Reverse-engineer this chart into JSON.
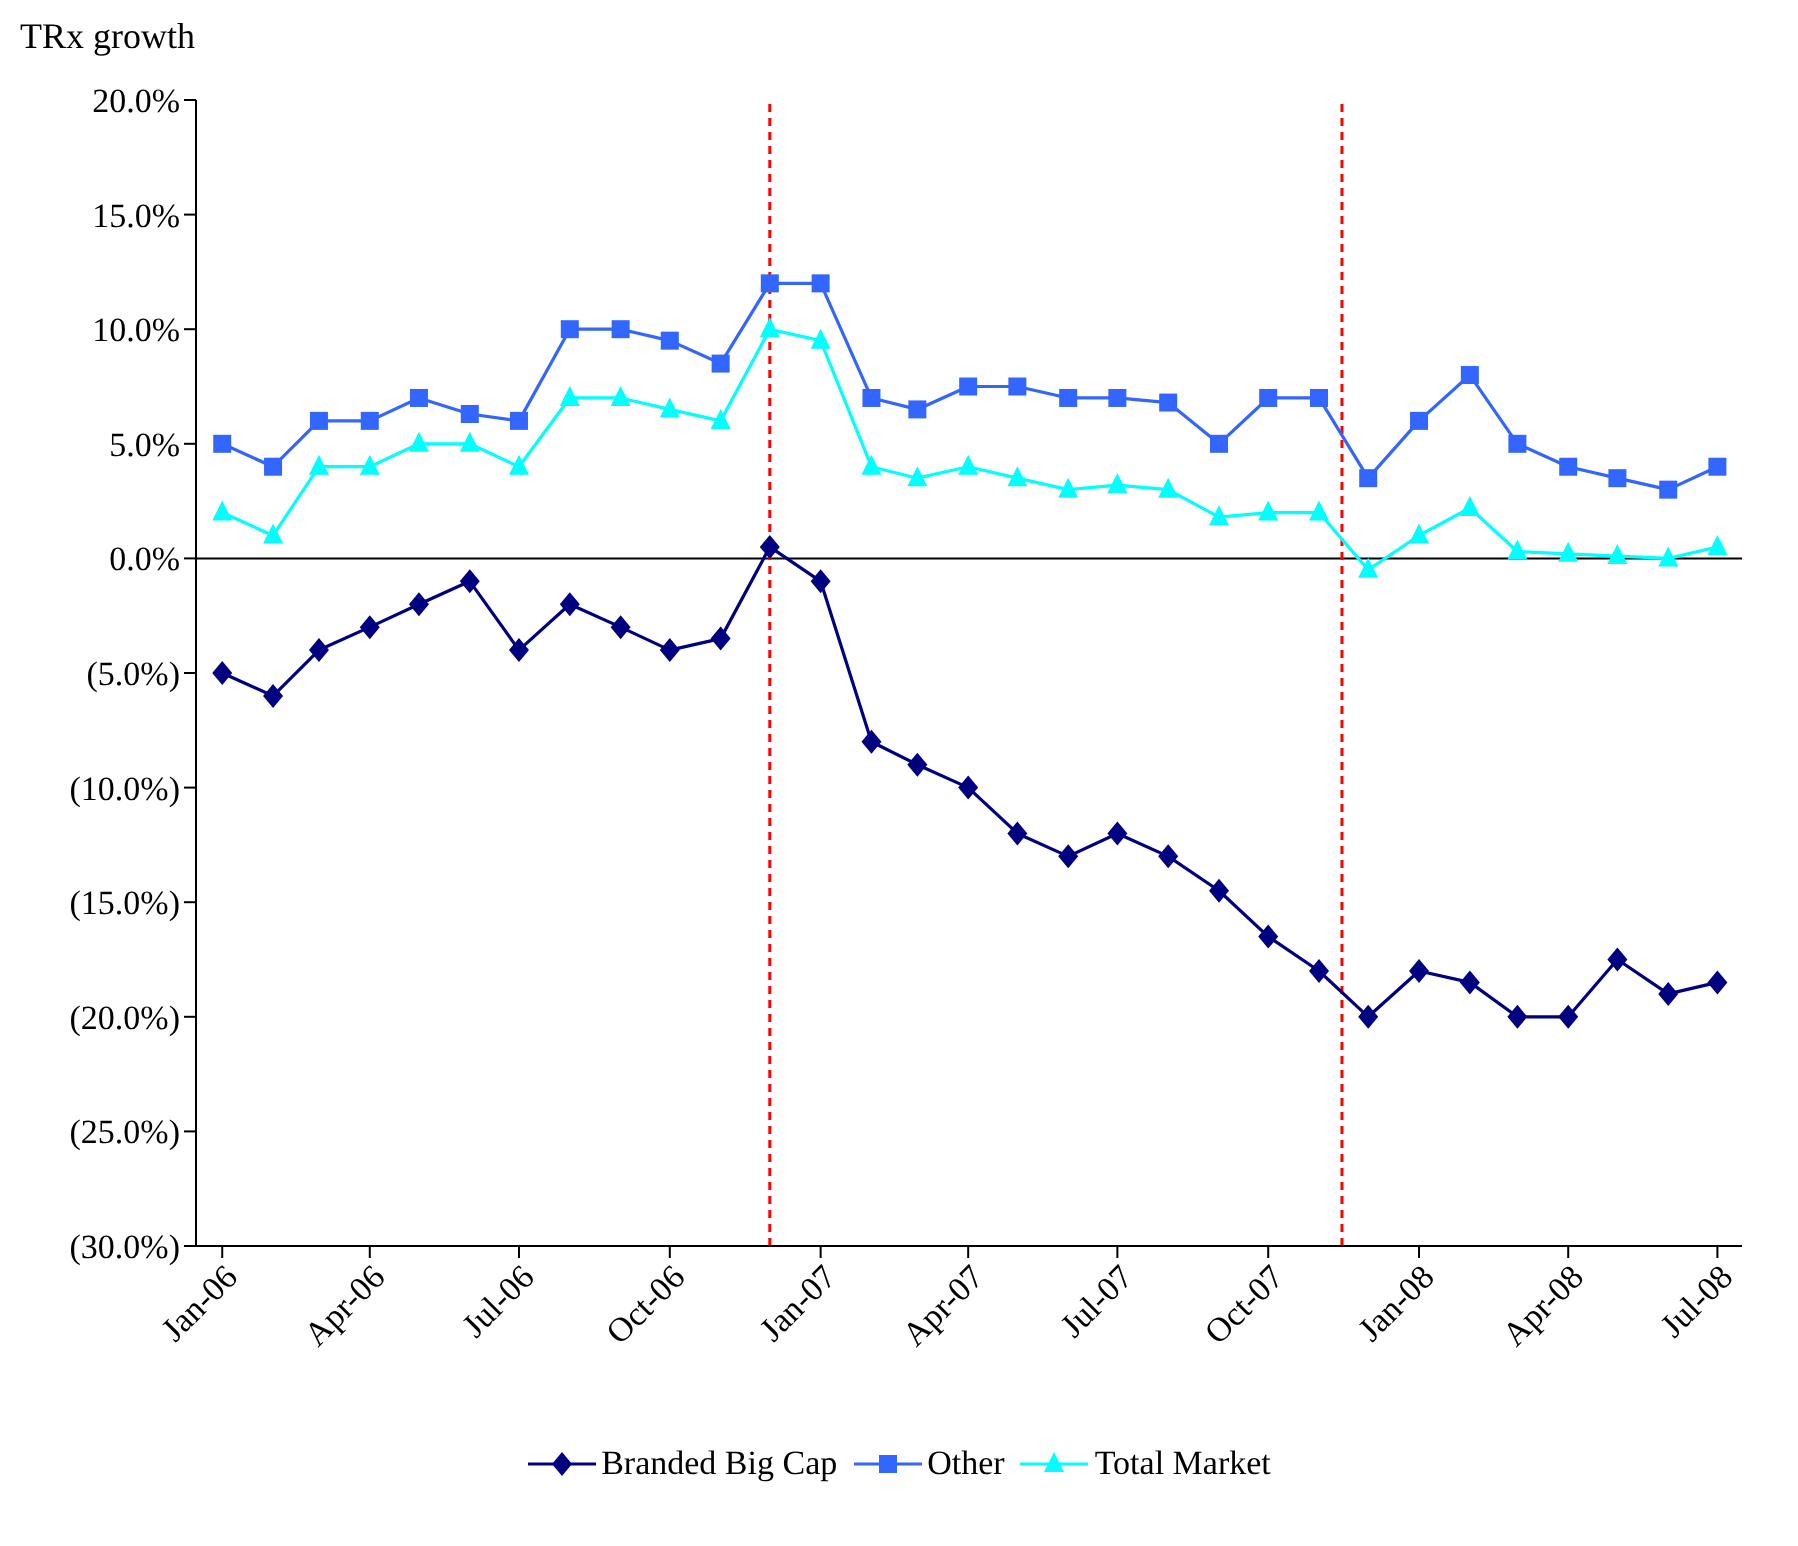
{
  "chart_data": {
    "type": "line",
    "ylabel": "TRx growth",
    "x": [
      "2006-01",
      "2006-02",
      "2006-03",
      "2006-04",
      "2006-05",
      "2006-06",
      "2006-07",
      "2006-08",
      "2006-09",
      "2006-10",
      "2006-11",
      "2006-12",
      "2007-01",
      "2007-02",
      "2007-03",
      "2007-04",
      "2007-05",
      "2007-06",
      "2007-07",
      "2007-08",
      "2007-09",
      "2007-10",
      "2007-11",
      "2007-12",
      "2008-01",
      "2008-02",
      "2008-03",
      "2008-04",
      "2008-05",
      "2008-06",
      "2008-07"
    ],
    "series": [
      {
        "name": "Branded Big Cap",
        "color": "#000080",
        "marker": "diamond",
        "values": [
          -5,
          -6,
          -4,
          -3,
          -2,
          -1,
          -4,
          -2,
          -3,
          -4,
          -3.5,
          0.5,
          -1,
          -8,
          -9,
          -10,
          -12,
          -13,
          -12,
          -13,
          -14.5,
          -16.5,
          -18,
          -20,
          -18,
          -18.5,
          -20,
          -20,
          -17.5,
          -19,
          -18.5
        ]
      },
      {
        "name": "Other",
        "color": "#3366ff",
        "marker": "square",
        "values": [
          5,
          4,
          6,
          6,
          7,
          6.3,
          6,
          10,
          10,
          9.5,
          8.5,
          12,
          12,
          7,
          6.5,
          7.5,
          7.5,
          7,
          7,
          6.8,
          5,
          7,
          7,
          3.5,
          6,
          8,
          5,
          4,
          3.5,
          3,
          4
        ]
      },
      {
        "name": "Total Market",
        "color": "#00ffff",
        "marker": "triangle",
        "values": [
          2,
          1,
          4,
          4,
          5,
          5,
          4,
          7,
          7,
          6.5,
          6,
          10,
          9.5,
          4,
          3.5,
          4,
          3.5,
          3,
          3.2,
          3,
          1.8,
          2,
          2,
          -0.5,
          1,
          2.2,
          0.3,
          0.2,
          0.1,
          0,
          0.5
        ]
      }
    ],
    "xlim": [
      "2005-12-16",
      "2008-07-16"
    ],
    "xticks": [
      {
        "value": "2006-01",
        "label": "Jan-06"
      },
      {
        "value": "2006-04",
        "label": "Apr-06"
      },
      {
        "value": "2006-07",
        "label": "Jul-06"
      },
      {
        "value": "2006-10",
        "label": "Oct-06"
      },
      {
        "value": "2007-01",
        "label": "Jan-07"
      },
      {
        "value": "2007-04",
        "label": "Apr-07"
      },
      {
        "value": "2007-07",
        "label": "Jul-07"
      },
      {
        "value": "2007-10",
        "label": "Oct-07"
      },
      {
        "value": "2008-01",
        "label": "Jan-08"
      },
      {
        "value": "2008-04",
        "label": "Apr-08"
      },
      {
        "value": "2008-07",
        "label": "Jul-08"
      }
    ],
    "ylim": [
      -30,
      20
    ],
    "yticks": [
      {
        "value": 20,
        "label": "20.0%"
      },
      {
        "value": 15,
        "label": "15.0%"
      },
      {
        "value": 10,
        "label": "10.0%"
      },
      {
        "value": 5,
        "label": "5.0%"
      },
      {
        "value": 0,
        "label": "0.0%"
      },
      {
        "value": -5,
        "label": "(5.0%)"
      },
      {
        "value": -10,
        "label": "(10.0%)"
      },
      {
        "value": -15,
        "label": "(15.0%)"
      },
      {
        "value": -20,
        "label": "(20.0%)"
      },
      {
        "value": -25,
        "label": "(25.0%)"
      },
      {
        "value": -30,
        "label": "(30.0%)"
      }
    ],
    "ref_lines": [
      {
        "axis": "x",
        "value": "2006-12",
        "color": "#ff0000",
        "line_style": "dashed"
      },
      {
        "axis": "x",
        "value": "2007-11-15",
        "color": "#ff0000",
        "line_style": "dashed"
      }
    ],
    "legend": "bottom"
  }
}
